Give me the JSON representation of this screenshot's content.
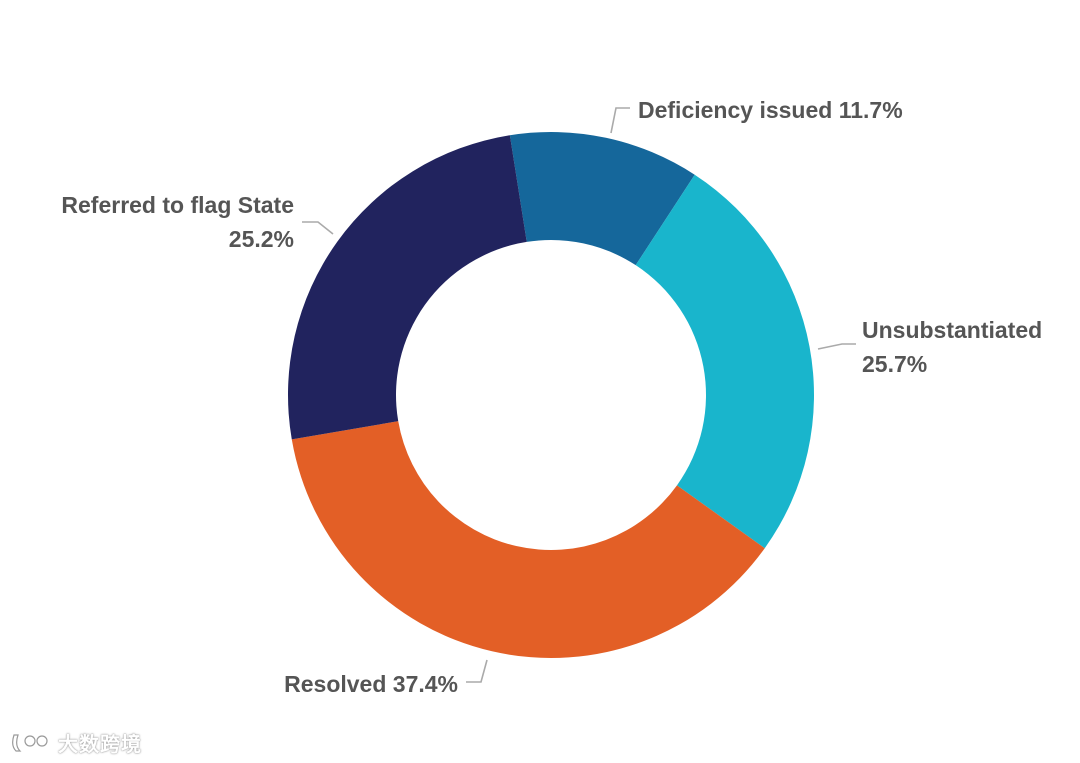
{
  "chart_data": {
    "type": "pie",
    "variant": "donut",
    "title": "",
    "slices": [
      {
        "label": "Deficiency issued",
        "percent_label": "11.7%",
        "value": 11.7,
        "color": "#15679b"
      },
      {
        "label": "Unsubstantiated",
        "percent_label": "25.7%",
        "value": 25.7,
        "color": "#19b5cc"
      },
      {
        "label": "Resolved",
        "percent_label": "37.4%",
        "value": 37.4,
        "color": "#e35f26"
      },
      {
        "label": "Referred to flag State",
        "percent_label": "25.2%",
        "value": 25.2,
        "color": "#21235e"
      }
    ]
  },
  "labels": {
    "deficiency": "Deficiency issued 11.7%",
    "unsubstantiated_line1": "Unsubstantiated",
    "unsubstantiated_line2": "25.7%",
    "resolved": "Resolved 37.4%",
    "referred_line1": "Referred to flag State",
    "referred_line2": "25.2%"
  },
  "watermark": {
    "text": "大数跨境",
    "logo_icon": "watermark-logo-icon"
  }
}
